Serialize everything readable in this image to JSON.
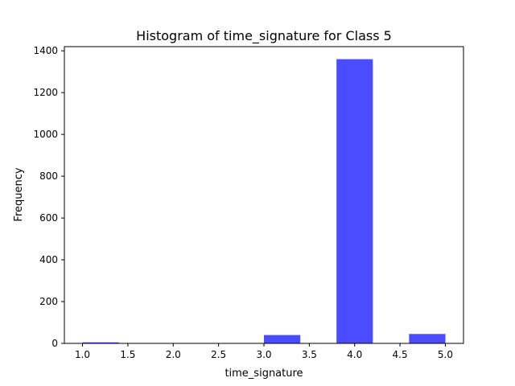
{
  "chart_data": {
    "type": "bar",
    "title": "Histogram of time_signature for Class 5",
    "xlabel": "time_signature",
    "ylabel": "Frequency",
    "xlim": [
      0.8,
      5.2
    ],
    "ylim": [
      0,
      1420
    ],
    "bin_edges": [
      1.0,
      1.4,
      1.8,
      2.2,
      2.6,
      3.0,
      3.4,
      3.8,
      4.2,
      4.6,
      5.0
    ],
    "values": [
      5,
      0,
      0,
      0,
      0,
      40,
      0,
      1360,
      0,
      45
    ],
    "bar_color": "#4b4bff",
    "x_ticks": [
      1.0,
      1.5,
      2.0,
      2.5,
      3.0,
      3.5,
      4.0,
      4.5,
      5.0
    ],
    "x_tick_labels": [
      "1.0",
      "1.5",
      "2.0",
      "2.5",
      "3.0",
      "3.5",
      "4.0",
      "4.5",
      "5.0"
    ],
    "y_ticks": [
      0,
      200,
      400,
      600,
      800,
      1000,
      1200,
      1400
    ],
    "y_tick_labels": [
      "0",
      "200",
      "400",
      "600",
      "800",
      "1000",
      "1200",
      "1400"
    ],
    "grid": false,
    "legend": "none"
  }
}
